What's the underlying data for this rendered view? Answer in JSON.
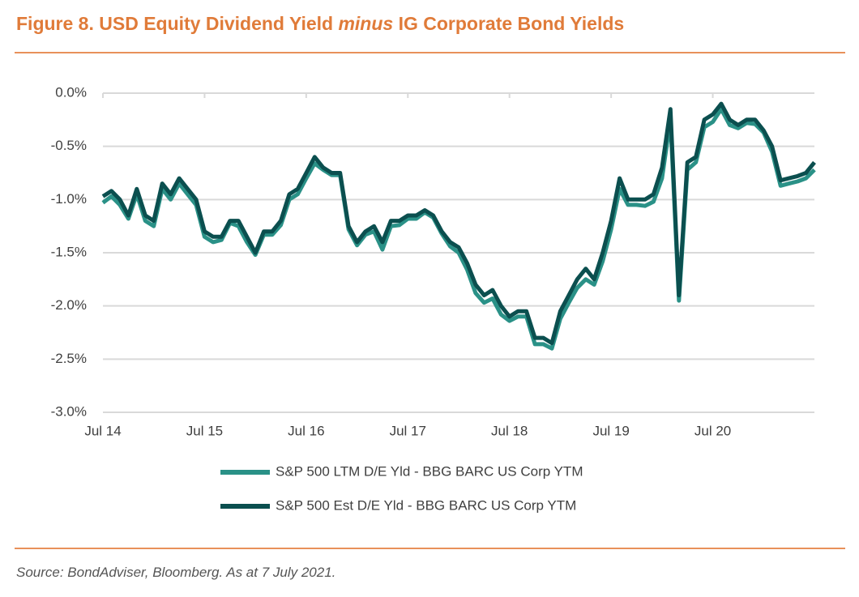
{
  "title": [
    "Figure 8. USD Equity Dividend Yield ",
    "minus",
    " IG Corporate Bond Yields"
  ],
  "source": "Source: BondAdviser, Bloomberg. As at 7 July 2021.",
  "chart_data": {
    "type": "line",
    "x": [
      "Jul 14",
      "Aug 14",
      "Sep 14",
      "Oct 14",
      "Nov 14",
      "Dec 14",
      "Jan 15",
      "Feb 15",
      "Mar 15",
      "Apr 15",
      "May 15",
      "Jun 15",
      "Jul 15",
      "Aug 15",
      "Sep 15",
      "Oct 15",
      "Nov 15",
      "Dec 15",
      "Jan 16",
      "Feb 16",
      "Mar 16",
      "Apr 16",
      "May 16",
      "Jun 16",
      "Jul 16",
      "Aug 16",
      "Sep 16",
      "Oct 16",
      "Nov 16",
      "Dec 16",
      "Jan 17",
      "Feb 17",
      "Mar 17",
      "Apr 17",
      "May 17",
      "Jun 17",
      "Jul 17",
      "Aug 17",
      "Sep 17",
      "Oct 17",
      "Nov 17",
      "Dec 17",
      "Jan 18",
      "Feb 18",
      "Mar 18",
      "Apr 18",
      "May 18",
      "Jun 18",
      "Jul 18",
      "Aug 18",
      "Sep 18",
      "Oct 18",
      "Nov 18",
      "Dec 18",
      "Jan 19",
      "Feb 19",
      "Mar 19",
      "Apr 19",
      "May 19",
      "Jun 19",
      "Jul 19",
      "Aug 19",
      "Sep 19",
      "Oct 19",
      "Nov 19",
      "Dec 19",
      "Jan 20",
      "Feb 20",
      "Mar 20",
      "Apr 20",
      "May 20",
      "Jun 20",
      "Jul 20",
      "Aug 20",
      "Sep 20",
      "Oct 20",
      "Nov 20",
      "Dec 20",
      "Jan 21",
      "Feb 21",
      "Mar 21",
      "Apr 21",
      "May 21",
      "Jun 21",
      "Jul 21"
    ],
    "xticks": [
      "Jul 14",
      "Jul 15",
      "Jul 16",
      "Jul 17",
      "Jul 18",
      "Jul 19",
      "Jul 20"
    ],
    "ylim": [
      -3,
      0
    ],
    "yticks": [
      {
        "value": 0,
        "label": "0.0%"
      },
      {
        "value": -0.5,
        "label": "-0.5%"
      },
      {
        "value": -1,
        "label": "-1.0%"
      },
      {
        "value": -1.5,
        "label": "-1.5%"
      },
      {
        "value": -2,
        "label": "-2.0%"
      },
      {
        "value": -2.5,
        "label": "-2.5%"
      },
      {
        "value": -3,
        "label": "-3.0%"
      }
    ],
    "grid": true,
    "series": [
      {
        "name": "S&P 500 LTM D/E Yld - BBG BARC US Corp YTM",
        "color": "#2a9187",
        "values": [
          -1.03,
          -0.97,
          -1.05,
          -1.18,
          -0.95,
          -1.2,
          -1.25,
          -0.9,
          -1.0,
          -0.85,
          -0.95,
          -1.05,
          -1.35,
          -1.4,
          -1.38,
          -1.22,
          -1.25,
          -1.4,
          -1.52,
          -1.33,
          -1.33,
          -1.24,
          -1.0,
          -0.95,
          -0.8,
          -0.66,
          -0.72,
          -0.77,
          -0.77,
          -1.28,
          -1.43,
          -1.33,
          -1.3,
          -1.47,
          -1.25,
          -1.24,
          -1.18,
          -1.18,
          -1.12,
          -1.17,
          -1.32,
          -1.44,
          -1.5,
          -1.66,
          -1.88,
          -1.97,
          -1.93,
          -2.08,
          -2.14,
          -2.1,
          -2.1,
          -2.36,
          -2.36,
          -2.4,
          -2.12,
          -1.97,
          -1.83,
          -1.75,
          -1.8,
          -1.58,
          -1.28,
          -0.9,
          -1.05,
          -1.05,
          -1.06,
          -1.02,
          -0.8,
          -0.25,
          -1.95,
          -0.72,
          -0.65,
          -0.32,
          -0.27,
          -0.15,
          -0.3,
          -0.33,
          -0.28,
          -0.29,
          -0.37,
          -0.55,
          -0.87,
          -0.85,
          -0.83,
          -0.8,
          -0.72
        ]
      },
      {
        "name": "S&P 500 Est D/E Yld - BBG BARC US Corp YTM",
        "color": "#0b4f4f",
        "values": [
          -0.97,
          -0.92,
          -1.0,
          -1.15,
          -0.9,
          -1.15,
          -1.2,
          -0.85,
          -0.95,
          -0.8,
          -0.9,
          -1.0,
          -1.3,
          -1.35,
          -1.35,
          -1.2,
          -1.2,
          -1.35,
          -1.5,
          -1.3,
          -1.3,
          -1.2,
          -0.95,
          -0.9,
          -0.75,
          -0.6,
          -0.7,
          -0.75,
          -0.75,
          -1.25,
          -1.4,
          -1.3,
          -1.25,
          -1.4,
          -1.2,
          -1.2,
          -1.15,
          -1.15,
          -1.1,
          -1.15,
          -1.3,
          -1.4,
          -1.45,
          -1.6,
          -1.8,
          -1.9,
          -1.85,
          -2.0,
          -2.1,
          -2.05,
          -2.05,
          -2.3,
          -2.3,
          -2.35,
          -2.05,
          -1.9,
          -1.75,
          -1.65,
          -1.75,
          -1.5,
          -1.2,
          -0.8,
          -1.0,
          -1.0,
          -1.0,
          -0.95,
          -0.7,
          -0.15,
          -1.9,
          -0.65,
          -0.6,
          -0.25,
          -0.2,
          -0.1,
          -0.25,
          -0.3,
          -0.25,
          -0.25,
          -0.35,
          -0.5,
          -0.82,
          -0.8,
          -0.78,
          -0.75,
          -0.65
        ]
      }
    ]
  }
}
